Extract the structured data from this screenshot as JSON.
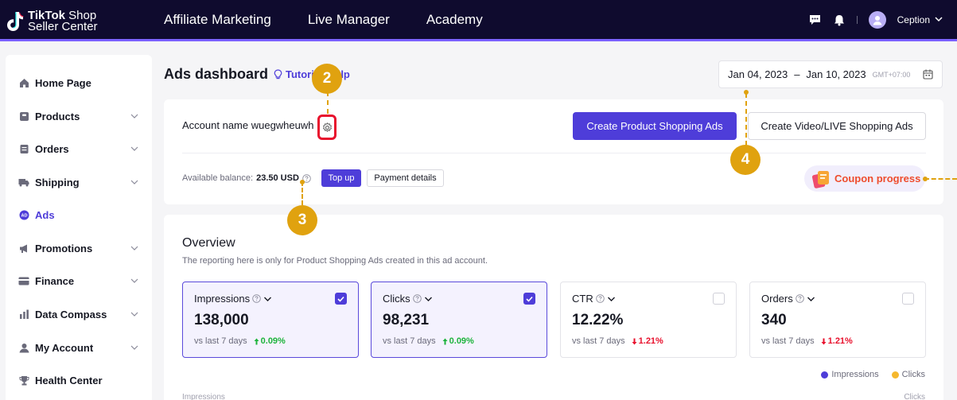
{
  "brand": {
    "line1_bold": "TikTok",
    "line1_rest": " Shop",
    "line2": "Seller Center"
  },
  "nav": [
    "Affiliate Marketing",
    "Live Manager",
    "Academy"
  ],
  "user": {
    "name": "Ception"
  },
  "sidebar": {
    "items": [
      {
        "label": "Home Page",
        "icon": "home-icon",
        "chevron": false,
        "active": false
      },
      {
        "label": "Products",
        "icon": "products-icon",
        "chevron": true,
        "active": false
      },
      {
        "label": "Orders",
        "icon": "orders-icon",
        "chevron": true,
        "active": false
      },
      {
        "label": "Shipping",
        "icon": "truck-icon",
        "chevron": true,
        "active": false
      },
      {
        "label": "Ads",
        "icon": "ads-icon",
        "chevron": false,
        "active": true
      },
      {
        "label": "Promotions",
        "icon": "megaphone-icon",
        "chevron": true,
        "active": false
      },
      {
        "label": "Finance",
        "icon": "card-icon",
        "chevron": true,
        "active": false
      },
      {
        "label": "Data Compass",
        "icon": "bar-chart-icon",
        "chevron": true,
        "active": false
      },
      {
        "label": "My Account",
        "icon": "user-icon",
        "chevron": true,
        "active": false
      },
      {
        "label": "Health Center",
        "icon": "trophy-icon",
        "chevron": false,
        "active": false
      }
    ]
  },
  "header": {
    "title": "Ads dashboard",
    "tutorial_label": "Tutorial",
    "help_label": "Help",
    "date_start": "Jan 04, 2023",
    "date_sep": "–",
    "date_end": "Jan 10, 2023",
    "timezone": "GMT+07:00"
  },
  "account": {
    "name": "Account name wuegwheuwh",
    "create_product_ads": "Create Product Shopping Ads",
    "create_video_ads": "Create Video/LIVE Shopping Ads",
    "balance_label": "Available balance:",
    "balance_value": "23.50 USD",
    "topup_label": "Top up",
    "payment_label": "Payment details",
    "coupon_label": "Coupon progress"
  },
  "overview": {
    "title": "Overview",
    "subtitle": "The reporting here is only for Product Shopping Ads created in this ad account.",
    "metrics": [
      {
        "label": "Impressions",
        "value": "138,000",
        "compare": "vs last 7 days",
        "change": "0.09%",
        "direction": "up",
        "selected": true
      },
      {
        "label": "Clicks",
        "value": "98,231",
        "compare": "vs last 7 days",
        "change": "0.09%",
        "direction": "up",
        "selected": true
      },
      {
        "label": "CTR",
        "value": "12.22%",
        "compare": "vs last 7 days",
        "change": "1.21%",
        "direction": "down",
        "selected": false
      },
      {
        "label": "Orders",
        "value": "340",
        "compare": "vs last 7 days",
        "change": "1.21%",
        "direction": "down",
        "selected": false
      }
    ],
    "legend": [
      {
        "label": "Impressions",
        "color": "#4e3dd9"
      },
      {
        "label": "Clicks",
        "color": "#f5b82e"
      }
    ],
    "axis_left": "Impressions",
    "axis_right": "Clicks"
  },
  "annotations": [
    "2",
    "3",
    "4"
  ],
  "colors": {
    "primary": "#4e3dd9",
    "topbar": "#0f0b2e",
    "annotation": "#e0a20f",
    "highlight": "#e8112d",
    "up": "#1db33c",
    "down": "#e8112d"
  }
}
